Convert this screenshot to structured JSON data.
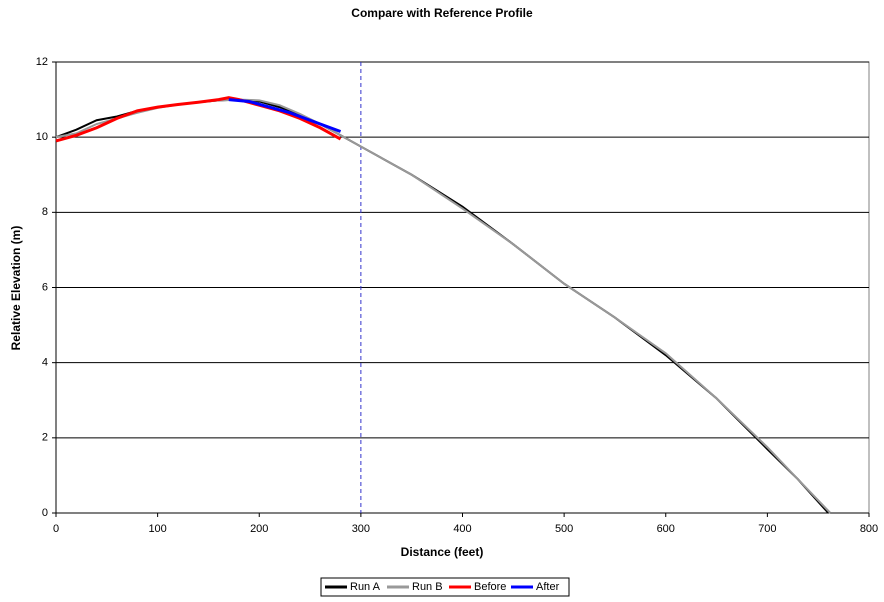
{
  "chart_data": {
    "type": "line",
    "title": "Compare with Reference Profile",
    "x_label": "Distance (feet)",
    "y_label": "Relative Elevation (m)",
    "xlim": [
      0,
      800
    ],
    "xticks": [
      0,
      100,
      200,
      300,
      400,
      500,
      600,
      700,
      800
    ],
    "ylim": [
      0,
      12
    ],
    "yticks": [
      0,
      2,
      4,
      6,
      8,
      10,
      12
    ],
    "grid": true,
    "legend": "bottom",
    "reference_x": 300,
    "reference_color": "#3333cc",
    "series": [
      {
        "name": "Run A",
        "color": "#000000",
        "x": [
          0,
          20,
          40,
          60,
          80,
          100,
          120,
          140,
          160,
          180,
          200,
          220,
          240,
          260,
          280,
          300,
          350,
          400,
          450,
          500,
          550,
          600,
          650,
          700,
          730,
          760
        ],
        "values": [
          10.0,
          10.2,
          10.45,
          10.55,
          10.7,
          10.8,
          10.87,
          10.93,
          10.98,
          11.0,
          10.95,
          10.8,
          10.6,
          10.35,
          10.05,
          9.75,
          9.0,
          8.15,
          7.15,
          6.1,
          5.2,
          4.2,
          3.05,
          1.7,
          0.9,
          0
        ]
      },
      {
        "name": "Run B",
        "color": "#999999",
        "x": [
          0,
          20,
          40,
          60,
          80,
          100,
          120,
          140,
          160,
          180,
          200,
          220,
          240,
          260,
          280,
          300,
          350,
          400,
          450,
          500,
          550,
          600,
          650,
          700,
          730,
          762
        ],
        "values": [
          10.0,
          10.1,
          10.35,
          10.5,
          10.65,
          10.78,
          10.87,
          10.93,
          10.98,
          11.0,
          10.98,
          10.85,
          10.62,
          10.35,
          10.05,
          9.75,
          9.0,
          8.1,
          7.15,
          6.1,
          5.2,
          4.25,
          3.05,
          1.75,
          0.9,
          0
        ]
      },
      {
        "name": "Before",
        "color": "#ff0000",
        "x": [
          0,
          20,
          40,
          60,
          80,
          100,
          120,
          140,
          160,
          170,
          180,
          200,
          220,
          240,
          260,
          280
        ],
        "values": [
          9.9,
          10.05,
          10.25,
          10.5,
          10.7,
          10.8,
          10.87,
          10.93,
          11.0,
          11.05,
          11.0,
          10.85,
          10.7,
          10.5,
          10.25,
          9.95
        ]
      },
      {
        "name": "After",
        "color": "#0000ff",
        "x": [
          170,
          190,
          210,
          230,
          250,
          270,
          280
        ],
        "values": [
          11.0,
          10.95,
          10.8,
          10.65,
          10.45,
          10.25,
          10.15
        ]
      }
    ]
  }
}
